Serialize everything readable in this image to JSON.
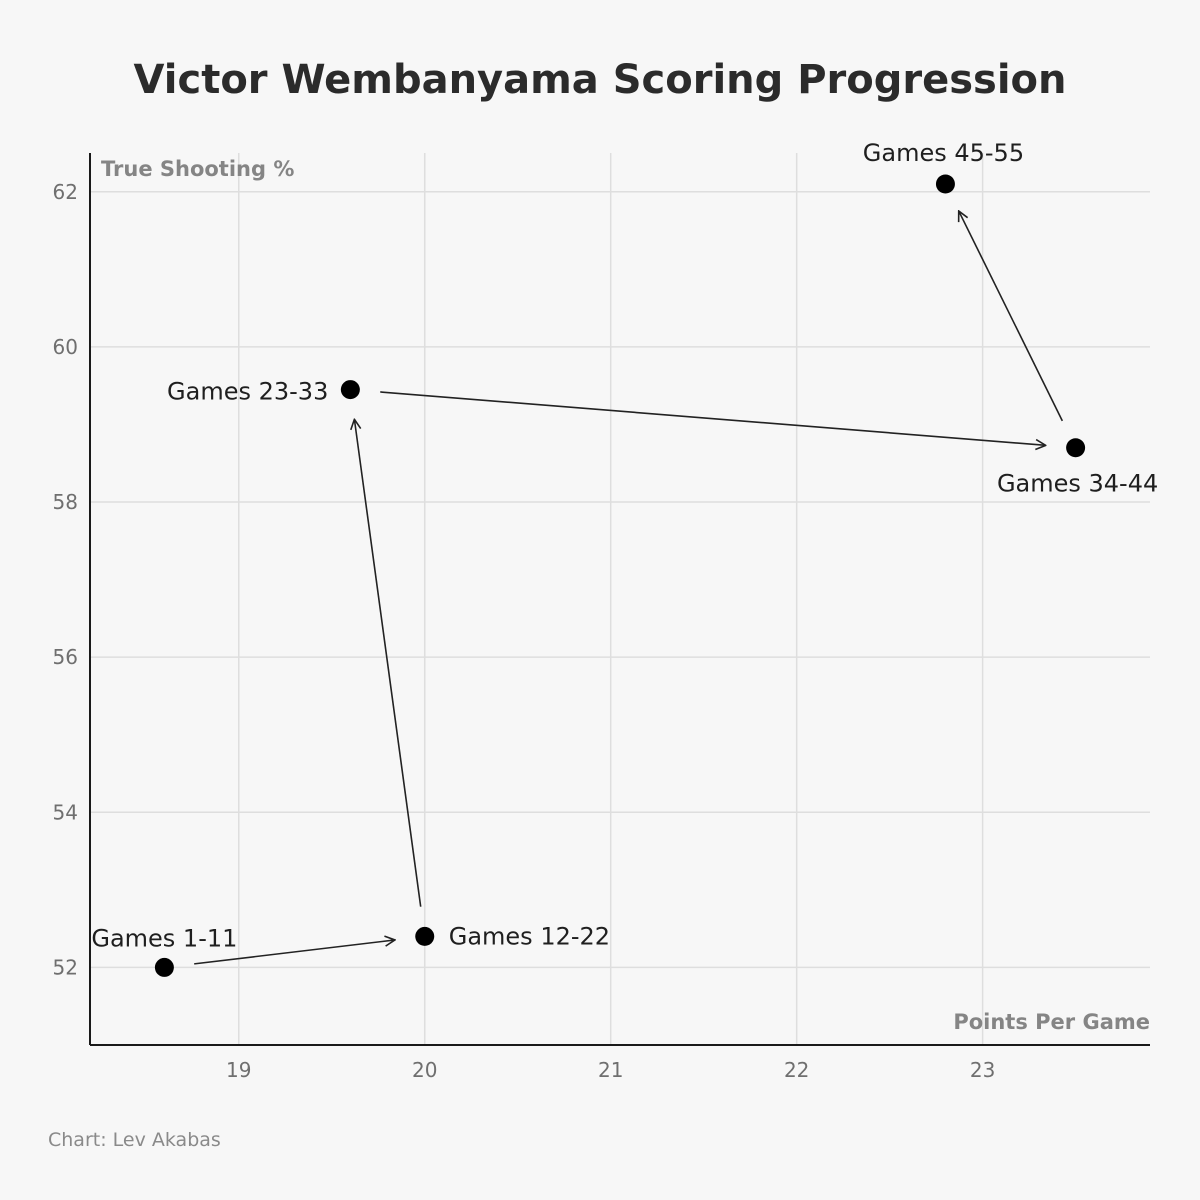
{
  "chart_data": {
    "type": "scatter",
    "title": "Victor Wembanyama Scoring Progression",
    "xlabel": "Points Per Game",
    "ylabel": "True Shooting %",
    "xlim": [
      18.2,
      23.9
    ],
    "ylim": [
      51.0,
      62.5
    ],
    "xticks": [
      19,
      20,
      21,
      22,
      23
    ],
    "yticks": [
      52,
      54,
      56,
      58,
      60,
      62
    ],
    "grid": true,
    "points": [
      {
        "label": "Games 1-11",
        "x": 18.6,
        "y": 52.0
      },
      {
        "label": "Games 12-22",
        "x": 20.0,
        "y": 52.4
      },
      {
        "label": "Games 23-33",
        "x": 19.6,
        "y": 59.45
      },
      {
        "label": "Games 34-44",
        "x": 23.5,
        "y": 58.7
      },
      {
        "label": "Games 45-55",
        "x": 22.8,
        "y": 62.1
      }
    ],
    "arrows": "sequential",
    "credit": "Chart: Lev Akabas"
  }
}
